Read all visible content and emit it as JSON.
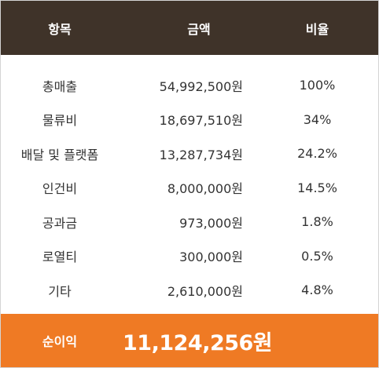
{
  "header": {
    "item": "항목",
    "amount": "금액",
    "ratio": "비율"
  },
  "rows": [
    {
      "item": "총매출",
      "amount": "54,992,500원",
      "ratio": "100%"
    },
    {
      "item": "물류비",
      "amount": "18,697,510원",
      "ratio": "34%"
    },
    {
      "item": "배달 및 플랫폼",
      "amount": "13,287,734원",
      "ratio": "24.2%"
    },
    {
      "item": "인건비",
      "amount": "8,000,000원",
      "ratio": "14.5%"
    },
    {
      "item": "공과금",
      "amount": "973,000원",
      "ratio": "1.8%"
    },
    {
      "item": "로열티",
      "amount": "300,000원",
      "ratio": "0.5%"
    },
    {
      "item": "기타",
      "amount": "2,610,000원",
      "ratio": "4.8%"
    }
  ],
  "footer": {
    "label": "순이익",
    "value": "11,124,256원"
  },
  "colors": {
    "header_bg": "#3f3329",
    "footer_bg": "#ef7a24",
    "text": "#333333"
  }
}
